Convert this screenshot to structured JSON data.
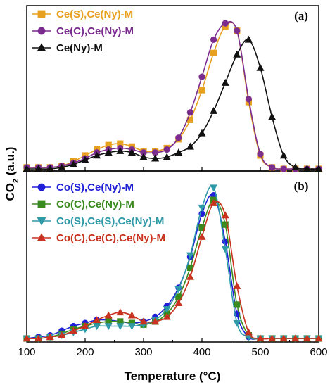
{
  "chart_data": {
    "type": "line",
    "xlabel": "Temperature (°C)",
    "ylabel": "CO2 (a.u.)",
    "ylabel_main": "CO",
    "ylabel_sub": "2",
    "ylabel_tail": " (a.u.)",
    "xlim": [
      100,
      600
    ],
    "x_ticks": [
      "100",
      "200",
      "300",
      "400",
      "500",
      "600"
    ],
    "grid": false,
    "legend_position": "top-left",
    "panels": [
      {
        "label": "(a)",
        "ylim": [
          0,
          1.08
        ],
        "series": [
          {
            "name": "Ce(S),Ce(Ny)-M",
            "color": "#E8A020",
            "marker": "square",
            "x": [
              100,
              120,
              140,
              160,
              180,
              200,
              220,
              240,
              260,
              280,
              300,
              320,
              340,
              360,
              380,
              400,
              420,
              440,
              460,
              480,
              500,
              520,
              540,
              560,
              580,
              600
            ],
            "y": [
              0.01,
              0.01,
              0.01,
              0.02,
              0.05,
              0.09,
              0.13,
              0.16,
              0.17,
              0.15,
              0.12,
              0.12,
              0.14,
              0.2,
              0.33,
              0.53,
              0.78,
              0.96,
              0.93,
              0.45,
              0.09,
              0.01,
              0.0,
              0.0,
              0.0,
              0.0
            ]
          },
          {
            "name": "Ce(C),Ce(Ny)-M",
            "color": "#7B2C8F",
            "marker": "circle",
            "x": [
              100,
              120,
              140,
              160,
              180,
              200,
              220,
              240,
              260,
              280,
              300,
              320,
              340,
              360,
              380,
              400,
              420,
              440,
              460,
              480,
              500,
              520,
              540,
              560,
              580,
              600
            ],
            "y": [
              0.01,
              0.01,
              0.01,
              0.02,
              0.04,
              0.07,
              0.11,
              0.13,
              0.14,
              0.13,
              0.11,
              0.11,
              0.13,
              0.21,
              0.38,
              0.62,
              0.87,
              0.98,
              0.93,
              0.47,
              0.1,
              0.01,
              0.0,
              0.0,
              0.0,
              0.0
            ]
          },
          {
            "name": "Ce(Ny)-M",
            "color": "#111111",
            "marker": "triangle-up",
            "x": [
              100,
              120,
              140,
              160,
              180,
              200,
              220,
              240,
              260,
              280,
              300,
              320,
              340,
              360,
              380,
              400,
              420,
              440,
              460,
              480,
              500,
              520,
              540,
              560,
              580,
              600
            ],
            "y": [
              0.0,
              0.0,
              0.0,
              0.01,
              0.03,
              0.06,
              0.09,
              0.11,
              0.12,
              0.11,
              0.08,
              0.07,
              0.08,
              0.11,
              0.15,
              0.24,
              0.39,
              0.58,
              0.77,
              0.87,
              0.68,
              0.35,
              0.09,
              0.01,
              0.0,
              0.0
            ]
          }
        ]
      },
      {
        "label": "(b)",
        "ylim": [
          0,
          1.07
        ],
        "series": [
          {
            "name": "Co(S),Ce(Ny)-M",
            "color": "#1F1FD8",
            "marker": "circle",
            "x": [
              100,
              120,
              140,
              160,
              180,
              200,
              220,
              240,
              260,
              280,
              300,
              320,
              340,
              360,
              380,
              400,
              420,
              440,
              460,
              480,
              500,
              520,
              540,
              560,
              580,
              600
            ],
            "y": [
              0.0,
              0.01,
              0.02,
              0.05,
              0.08,
              0.1,
              0.12,
              0.12,
              0.11,
              0.1,
              0.11,
              0.14,
              0.21,
              0.33,
              0.53,
              0.81,
              0.93,
              0.63,
              0.16,
              0.01,
              0.0,
              0.0,
              0.0,
              0.0,
              0.0,
              0.0
            ]
          },
          {
            "name": "Co(C),Ce(Ny)-M",
            "color": "#3A8A1E",
            "marker": "square",
            "x": [
              100,
              120,
              140,
              160,
              180,
              200,
              220,
              240,
              260,
              280,
              300,
              320,
              340,
              360,
              380,
              400,
              420,
              440,
              460,
              480,
              500,
              520,
              540,
              560,
              580,
              600
            ],
            "y": [
              0.0,
              0.0,
              0.01,
              0.03,
              0.06,
              0.08,
              0.1,
              0.11,
              0.11,
              0.1,
              0.09,
              0.11,
              0.16,
              0.27,
              0.46,
              0.72,
              0.9,
              0.74,
              0.22,
              0.02,
              0.0,
              0.0,
              0.0,
              0.0,
              0.0,
              0.0
            ]
          },
          {
            "name": "Co(S),Ce(S),Ce(Ny)-M",
            "color": "#2E9AA8",
            "marker": "triangle-down",
            "x": [
              100,
              120,
              140,
              160,
              180,
              200,
              220,
              240,
              260,
              280,
              300,
              320,
              340,
              360,
              380,
              400,
              420,
              440,
              460,
              480,
              500,
              520,
              540,
              560,
              580,
              600
            ],
            "y": [
              0.0,
              0.0,
              0.01,
              0.02,
              0.04,
              0.06,
              0.08,
              0.08,
              0.08,
              0.08,
              0.09,
              0.12,
              0.19,
              0.32,
              0.54,
              0.85,
              0.98,
              0.58,
              0.1,
              0.01,
              0.0,
              0.0,
              0.0,
              0.0,
              0.0,
              0.0
            ]
          },
          {
            "name": "Co(C),Ce(C),Ce(Ny)-M",
            "color": "#C8321E",
            "marker": "triangle-up",
            "x": [
              100,
              120,
              140,
              160,
              180,
              200,
              220,
              240,
              260,
              280,
              300,
              320,
              340,
              360,
              380,
              400,
              420,
              440,
              460,
              480,
              500,
              520,
              540,
              560,
              580,
              600
            ],
            "y": [
              0.0,
              0.0,
              0.01,
              0.02,
              0.05,
              0.08,
              0.12,
              0.15,
              0.17,
              0.15,
              0.11,
              0.11,
              0.14,
              0.23,
              0.4,
              0.66,
              0.88,
              0.8,
              0.34,
              0.04,
              0.0,
              0.0,
              0.0,
              0.0,
              0.0,
              0.0
            ]
          }
        ]
      }
    ]
  }
}
